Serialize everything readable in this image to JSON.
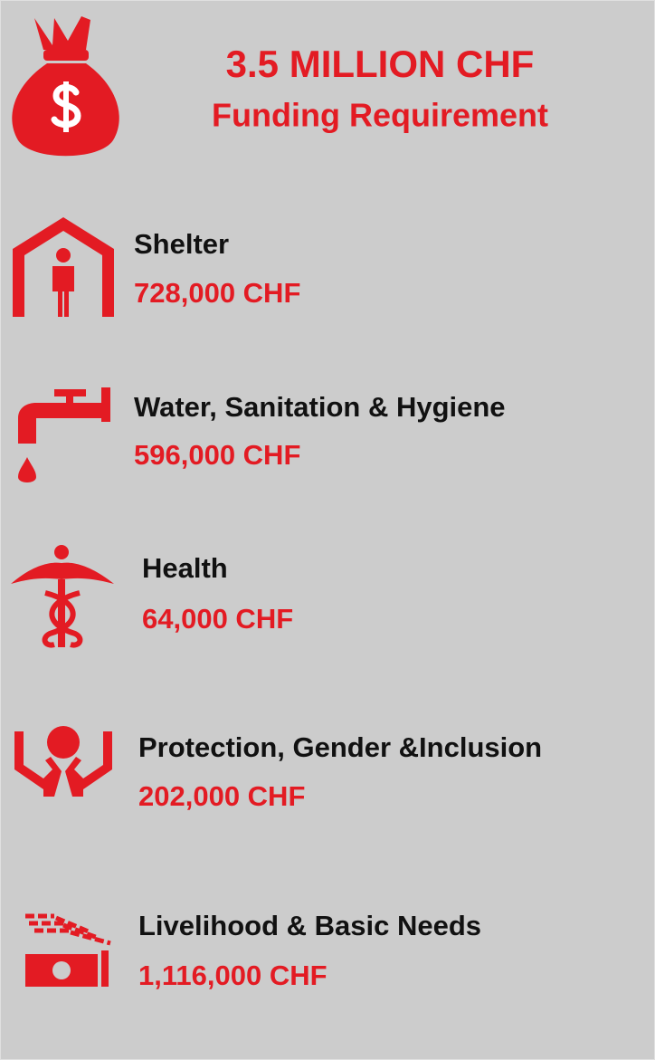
{
  "header": {
    "title": "3.5 MILLION CHF",
    "subtitle": "Funding Requirement"
  },
  "items": [
    {
      "label": "Shelter",
      "amount": "728,000 CHF"
    },
    {
      "label": "Water, Sanitation & Hygiene",
      "amount": "596,000 CHF"
    },
    {
      "label": "Health",
      "amount": "64,000 CHF"
    },
    {
      "label": "Protection, Gender &Inclusion",
      "amount": "202,000 CHF"
    },
    {
      "label": "Livelihood & Basic Needs",
      "amount": "1,116,000 CHF"
    }
  ]
}
